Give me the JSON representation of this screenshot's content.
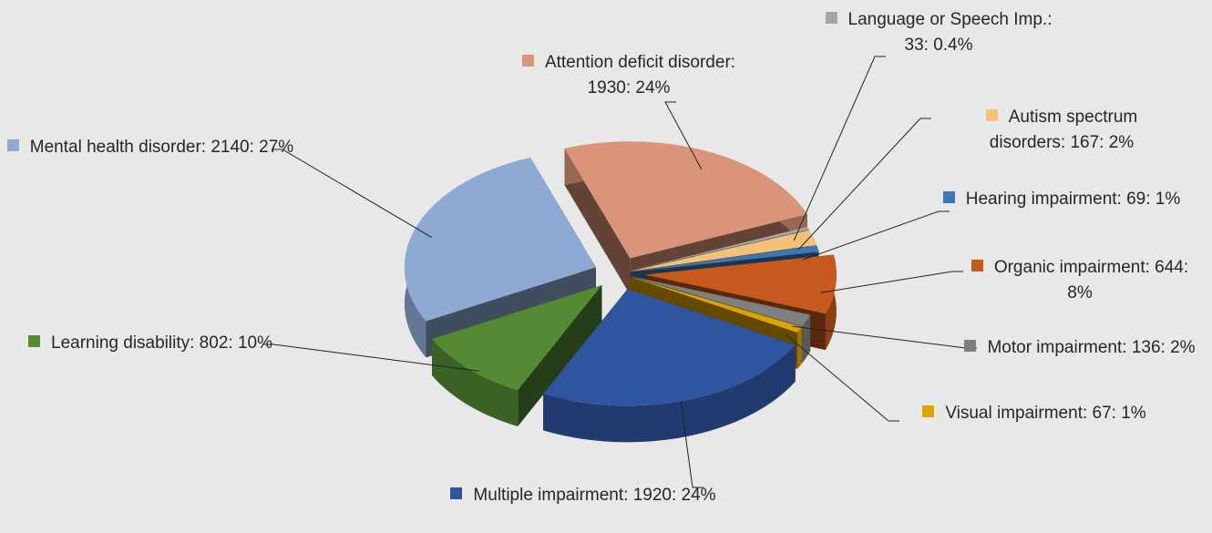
{
  "chart_data": {
    "type": "pie3d",
    "labels": [
      "Attention deficit disorder: 1930: 24%",
      "Language or Speech Imp.: 33: 0.4%",
      "Autism spectrum disorders: 167: 2%",
      "Hearing impairment: 69: 1%",
      "Organic impairment: 644: 8%",
      "Motor impairment: 136: 2%",
      "Visual impairment: 67: 1%",
      "Multiple impairment: 1920: 24%",
      "Learning disability: 802: 10%",
      "Mental health disorder: 2140: 27%"
    ],
    "values": [
      1930,
      33,
      167,
      69,
      644,
      136,
      67,
      1920,
      802,
      2140
    ],
    "colors": [
      "#d99479",
      "#a5a5a5",
      "#f2c27c",
      "#3e78b2",
      "#c65a1e",
      "#7f7f7f",
      "#dba500",
      "#2f55a0",
      "#558a34",
      "#8eaad2"
    ]
  }
}
